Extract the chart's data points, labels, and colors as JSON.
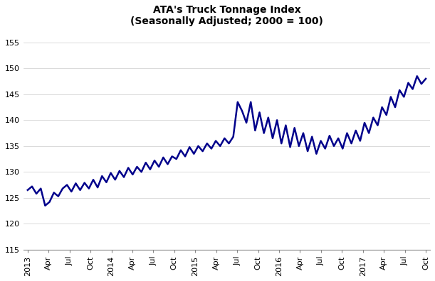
{
  "title": "ATA's Truck Tonnage Index\n(Seasonally Adjusted; 2000 = 100)",
  "line_color": "#00008B",
  "line_width": 1.8,
  "background_color": "#ffffff",
  "ylim": [
    115,
    157
  ],
  "yticks": [
    115,
    120,
    125,
    130,
    135,
    140,
    145,
    150,
    155
  ],
  "xtick_labels": [
    "2013",
    "Apr",
    "Jul",
    "Oct",
    "2014",
    "Apr",
    "Jul",
    "Oct",
    "2015",
    "Apr",
    "Jul",
    "Oct",
    "2016",
    "Apr",
    "Jul",
    "Oct",
    "2017",
    "Apr",
    "Jul",
    "Oct"
  ],
  "values": [
    126.5,
    127.2,
    125.8,
    126.8,
    123.5,
    124.2,
    126.0,
    125.3,
    126.8,
    127.5,
    126.2,
    127.8,
    126.5,
    127.9,
    126.8,
    128.5,
    127.0,
    129.2,
    128.0,
    129.8,
    128.5,
    130.2,
    129.0,
    130.8,
    129.5,
    131.0,
    130.0,
    131.8,
    130.5,
    132.2,
    131.0,
    132.8,
    131.5,
    133.0,
    132.5,
    134.2,
    133.0,
    134.8,
    133.5,
    135.0,
    134.0,
    135.5,
    134.5,
    136.0,
    135.0,
    136.5,
    135.5,
    136.8,
    143.5,
    141.8,
    139.5,
    143.5,
    138.0,
    141.5,
    137.5,
    140.5,
    136.5,
    140.0,
    135.5,
    139.0,
    134.8,
    138.5,
    135.0,
    137.5,
    134.0,
    136.8,
    133.5,
    136.0,
    134.5,
    137.0,
    135.0,
    136.5,
    134.5,
    137.5,
    135.5,
    138.0,
    136.0,
    139.5,
    137.5,
    140.5,
    139.0,
    142.5,
    141.0,
    144.5,
    142.5,
    145.8,
    144.5,
    147.2,
    146.0,
    148.5,
    147.0,
    148.0
  ],
  "n_xtick_labels": 20,
  "figwidth": 6.11,
  "figheight": 3.96,
  "dpi": 100
}
